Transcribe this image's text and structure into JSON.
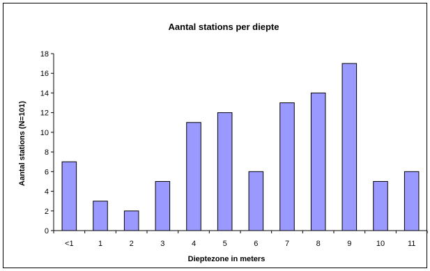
{
  "chart_data": {
    "type": "bar",
    "title": "Aantal stations per diepte",
    "xlabel": "Dieptezone in meters",
    "ylabel": "Aantal stations (N=101)",
    "categories": [
      "<1",
      "1",
      "2",
      "3",
      "4",
      "5",
      "6",
      "7",
      "8",
      "9",
      "10",
      "11"
    ],
    "values": [
      7,
      3,
      2,
      5,
      11,
      12,
      6,
      13,
      14,
      17,
      5,
      6
    ],
    "ylim": [
      0,
      18
    ],
    "yticks": [
      0,
      2,
      4,
      6,
      8,
      10,
      12,
      14,
      16,
      18
    ],
    "grid": false,
    "legend": "none",
    "bar_color": "#9999ff",
    "bar_edge_color": "#000000"
  }
}
